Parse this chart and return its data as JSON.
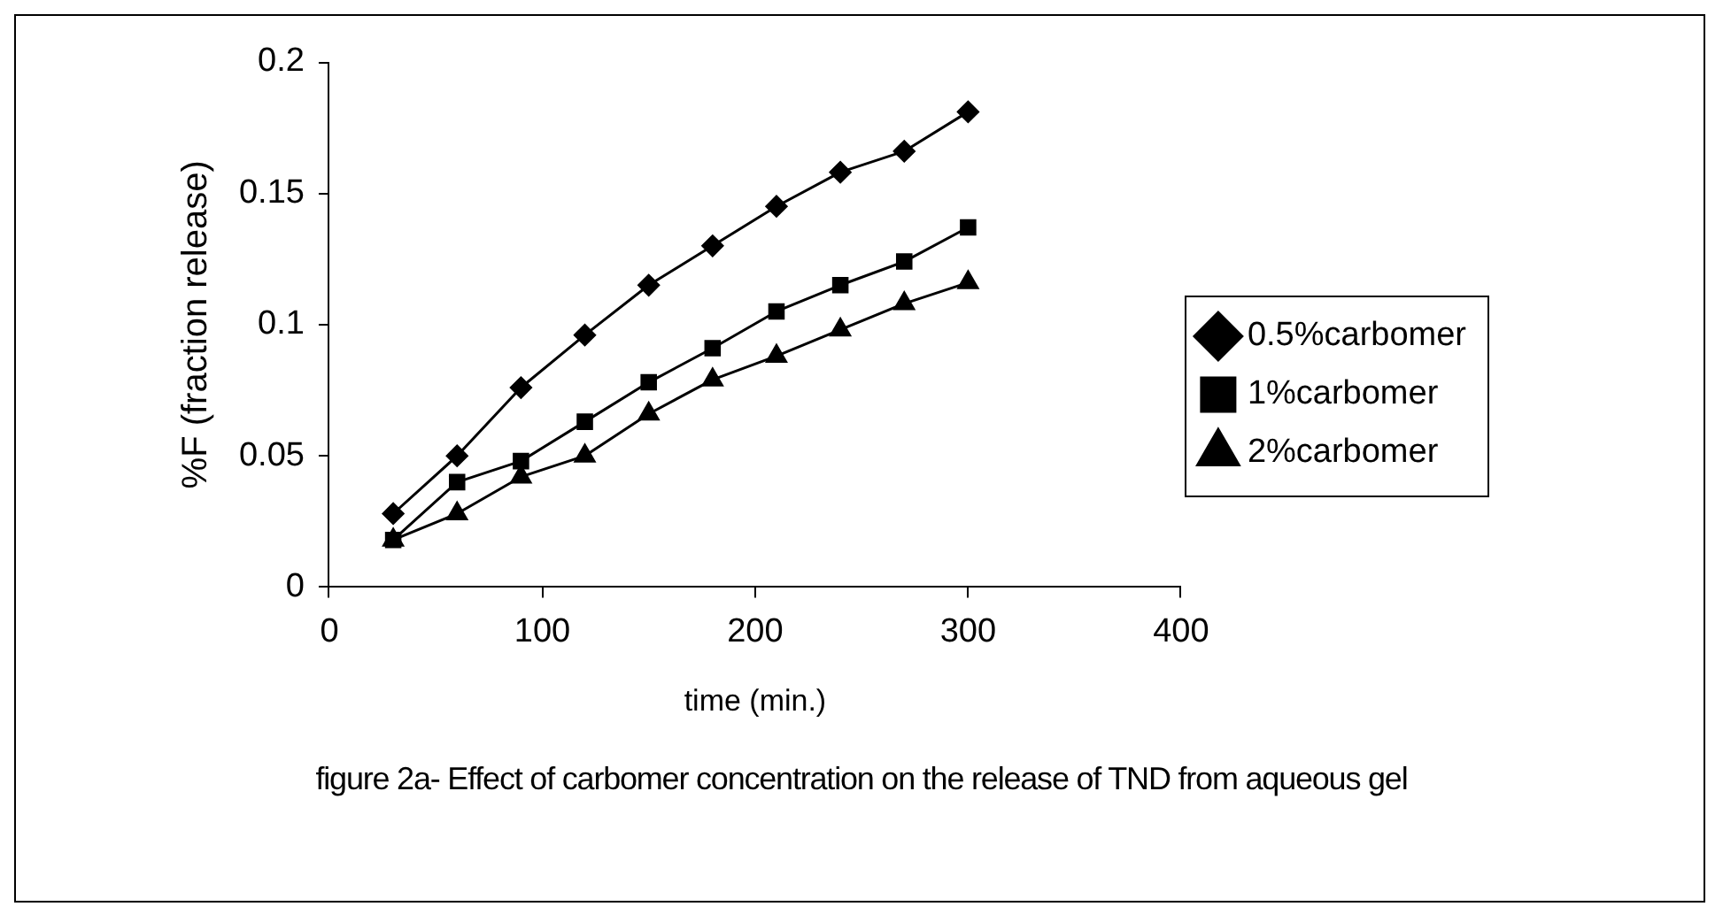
{
  "chart_data": {
    "type": "line",
    "xlabel": "time (min.)",
    "ylabel": "%F (fraction release)",
    "annotations": [
      "figure 2a- Effect of carbomer concentration on the release of TND from aqueous gel"
    ],
    "x": [
      30,
      60,
      90,
      120,
      150,
      180,
      210,
      240,
      270,
      300
    ],
    "xlim": [
      0,
      400
    ],
    "xticks": [
      0,
      100,
      200,
      300,
      400
    ],
    "ylim": [
      0,
      0.2
    ],
    "yticks": [
      0,
      0.05,
      0.1,
      0.15,
      0.2
    ],
    "grid": false,
    "legend": "right",
    "line_style": "solid",
    "series": [
      {
        "name": "0.5%carbomer",
        "color": "#000000",
        "marker": "diamond",
        "values": [
          0.028,
          0.05,
          0.076,
          0.096,
          0.115,
          0.13,
          0.145,
          0.158,
          0.166,
          0.181
        ]
      },
      {
        "name": "1%carbomer",
        "color": "#000000",
        "marker": "square",
        "values": [
          0.018,
          0.04,
          0.048,
          0.063,
          0.078,
          0.091,
          0.105,
          0.115,
          0.124,
          0.137
        ]
      },
      {
        "name": "2%carbomer",
        "color": "#000000",
        "marker": "triangle",
        "values": [
          0.018,
          0.028,
          0.042,
          0.05,
          0.066,
          0.079,
          0.088,
          0.098,
          0.108,
          0.116
        ]
      }
    ]
  }
}
